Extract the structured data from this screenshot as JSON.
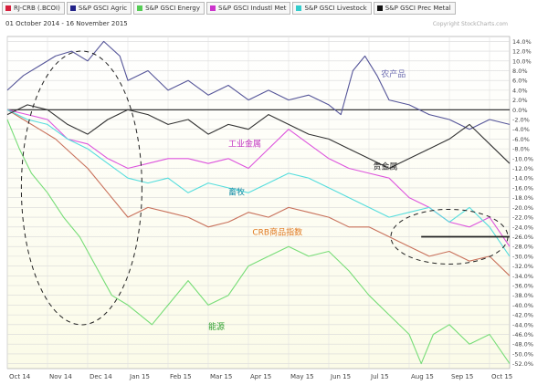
{
  "legend": [
    {
      "label": "RJ-CRB (.BCOI)",
      "color": "#d61f3c"
    },
    {
      "label": "S&P GSCI Agric",
      "color": "#222288"
    },
    {
      "label": "S&P GSCI Energy",
      "color": "#55cc55"
    },
    {
      "label": "S&P GSCI Industl Met",
      "color": "#cc33cc"
    },
    {
      "label": "S&P GSCI Livestock",
      "color": "#33cccc"
    },
    {
      "label": "S&P GSCI Prec Metal",
      "color": "#111111"
    }
  ],
  "date_range": "01 October 2014 - 16 November 2015",
  "copyright": "Copyright StockCharts.com",
  "chart_data": {
    "type": "line",
    "x_ticks": [
      "Oct 14",
      "Nov 14",
      "Dec 14",
      "Jan 15",
      "Feb 15",
      "Mar 15",
      "Apr 15",
      "May 15",
      "Jun 15",
      "Jul 15",
      "Aug 15",
      "Sep 15",
      "Oct 15"
    ],
    "y_ticks": [
      "14.0%",
      "12.0%",
      "10.0%",
      "8.0%",
      "6.0%",
      "4.0%",
      "2.0%",
      "0.0%",
      "-2.0%",
      "-4.0%",
      "-6.0%",
      "-8.0%",
      "-10.0%",
      "-12.0%",
      "-14.0%",
      "-16.0%",
      "-18.0%",
      "-20.0%",
      "-22.0%",
      "-24.0%",
      "-26.0%",
      "-28.0%",
      "-30.0%",
      "-32.0%",
      "-34.0%",
      "-36.0%",
      "-38.0%",
      "-40.0%",
      "-42.0%",
      "-44.0%",
      "-46.0%",
      "-48.0%",
      "-50.0%",
      "-52.0%"
    ],
    "ylim": [
      -53,
      15
    ],
    "xlim": [
      0,
      12.5
    ],
    "series": [
      {
        "name": "RJ-CRB (.BCOI)",
        "color": "#c8705a",
        "x": [
          0,
          0.4,
          0.8,
          1.2,
          1.6,
          2,
          2.5,
          3,
          3.5,
          4,
          4.5,
          5,
          5.5,
          6,
          6.5,
          7,
          7.5,
          8,
          8.5,
          9,
          9.5,
          10,
          10.5,
          11,
          11.5,
          12,
          12.5
        ],
        "values": [
          0,
          -2,
          -4,
          -6,
          -9,
          -12,
          -17,
          -22,
          -20,
          -21,
          -22,
          -24,
          -23,
          -21,
          -22,
          -20,
          -21,
          -22,
          -24,
          -24,
          -26,
          -28,
          -30,
          -29,
          -31,
          -30,
          -34
        ]
      },
      {
        "name": "S&P GSCI Agric",
        "color": "#555599",
        "x": [
          0,
          0.4,
          0.8,
          1.2,
          1.6,
          2,
          2.4,
          2.8,
          3,
          3.5,
          4,
          4.5,
          5,
          5.5,
          6,
          6.5,
          7,
          7.5,
          8,
          8.3,
          8.6,
          8.9,
          9.2,
          9.5,
          10,
          10.5,
          11,
          11.5,
          12,
          12.5
        ],
        "values": [
          4,
          7,
          9,
          11,
          12,
          10,
          14,
          11,
          6,
          8,
          4,
          6,
          3,
          5,
          2,
          4,
          2,
          3,
          1,
          -1,
          8,
          11,
          7,
          2,
          1,
          -1,
          -2,
          -4,
          -2,
          -3
        ]
      },
      {
        "name": "S&P GSCI Energy",
        "color": "#77dd77",
        "x": [
          0,
          0.3,
          0.6,
          1,
          1.4,
          1.8,
          2.2,
          2.6,
          3,
          3.3,
          3.6,
          4,
          4.5,
          5,
          5.5,
          6,
          6.5,
          7,
          7.5,
          8,
          8.5,
          9,
          9.5,
          10,
          10.3,
          10.6,
          11,
          11.5,
          12,
          12.5
        ],
        "values": [
          -2,
          -8,
          -13,
          -17,
          -22,
          -26,
          -32,
          -38,
          -40,
          -42,
          -44,
          -40,
          -35,
          -40,
          -38,
          -32,
          -30,
          -28,
          -30,
          -29,
          -33,
          -38,
          -42,
          -46,
          -52,
          -46,
          -44,
          -48,
          -46,
          -52
        ]
      },
      {
        "name": "S&P GSCI Industl Met",
        "color": "#dd55dd",
        "x": [
          0,
          0.5,
          1,
          1.5,
          2,
          2.5,
          3,
          3.5,
          4,
          4.5,
          5,
          5.5,
          6,
          6.5,
          7,
          7.5,
          8,
          8.5,
          9,
          9.5,
          10,
          10.5,
          11,
          11.5,
          12,
          12.5
        ],
        "values": [
          0,
          -1,
          -2,
          -6,
          -7,
          -10,
          -12,
          -11,
          -10,
          -10,
          -11,
          -10,
          -12,
          -8,
          -4,
          -7,
          -10,
          -12,
          -13,
          -14,
          -18,
          -20,
          -23,
          -24,
          -22,
          -28
        ]
      },
      {
        "name": "S&P GSCI Livestock",
        "color": "#55dddd",
        "x": [
          0,
          0.5,
          1,
          1.5,
          2,
          2.5,
          3,
          3.5,
          4,
          4.5,
          5,
          5.5,
          6,
          6.5,
          7,
          7.5,
          8,
          8.5,
          9,
          9.5,
          10,
          10.5,
          11,
          11.5,
          12,
          12.5
        ],
        "values": [
          0,
          -2,
          -3,
          -6,
          -8,
          -11,
          -14,
          -15,
          -14,
          -17,
          -15,
          -16,
          -17,
          -15,
          -13,
          -14,
          -16,
          -18,
          -20,
          -22,
          -21,
          -20,
          -23,
          -20,
          -24,
          -30
        ]
      },
      {
        "name": "S&P GSCI Prec Metal",
        "color": "#333333",
        "x": [
          0,
          0.5,
          1,
          1.5,
          2,
          2.5,
          3,
          3.5,
          4,
          4.5,
          5,
          5.5,
          6,
          6.5,
          7,
          7.5,
          8,
          8.5,
          9,
          9.5,
          10,
          10.5,
          11,
          11.5,
          12,
          12.5
        ],
        "values": [
          -1,
          1,
          0,
          -3,
          -5,
          -2,
          0,
          -1,
          -3,
          -2,
          -5,
          -3,
          -4,
          -1,
          -3,
          -5,
          -6,
          -8,
          -10,
          -12,
          -10,
          -8,
          -6,
          -3,
          -7,
          -11
        ]
      }
    ],
    "reference_line": {
      "value": 0,
      "color": "#222222"
    },
    "annotations": [
      {
        "text": "农产品",
        "x": 9.3,
        "y": 6.8,
        "color": "#6b6bb0"
      },
      {
        "text": "工业金属",
        "x": 5.5,
        "y": -7.5,
        "color": "#c030c0"
      },
      {
        "text": "贵金属",
        "x": 9.1,
        "y": -12.2,
        "color": "#222222"
      },
      {
        "text": "畜牧",
        "x": 5.5,
        "y": -17.4,
        "color": "#1a8fa8"
      },
      {
        "text": "CRB商品指数",
        "x": 6.1,
        "y": -25.6,
        "color": "#e07820"
      },
      {
        "text": "能源",
        "x": 5.0,
        "y": -45.0,
        "color": "#30a030"
      }
    ],
    "grid": true,
    "background_gradient": [
      "#ffffff",
      "#fbfbe8"
    ]
  }
}
